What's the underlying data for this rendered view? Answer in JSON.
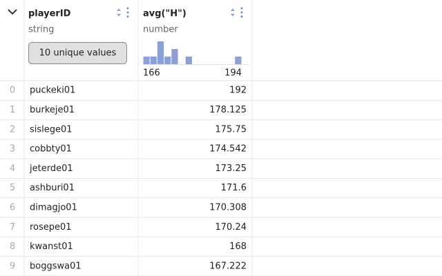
{
  "table": {
    "columns": [
      {
        "name": "playerID",
        "type": "string",
        "summary": {
          "button": "10 unique values"
        }
      },
      {
        "name": "avg(\"H\")",
        "type": "number",
        "summary": {
          "bins": [
            166,
            168,
            170,
            172,
            174,
            176,
            178,
            180,
            182,
            184,
            186,
            188,
            190,
            192,
            194
          ],
          "counts": [
            1,
            1,
            3,
            1,
            2,
            0,
            1,
            0,
            0,
            0,
            0,
            0,
            0,
            1
          ]
        }
      }
    ],
    "rows": [
      [
        0,
        "puckeki01",
        192
      ],
      [
        1,
        "burkeje01",
        178.125
      ],
      [
        2,
        "sislege01",
        175.75
      ],
      [
        3,
        "cobbty01",
        174.542
      ],
      [
        4,
        "jeterde01",
        173.25
      ],
      [
        5,
        "ashburi01",
        171.6
      ],
      [
        6,
        "dimagjo01",
        170.308
      ],
      [
        7,
        "rosepe01",
        170.24
      ],
      [
        8,
        "kwanst01",
        168
      ],
      [
        9,
        "boggswa01",
        167.222
      ]
    ]
  }
}
